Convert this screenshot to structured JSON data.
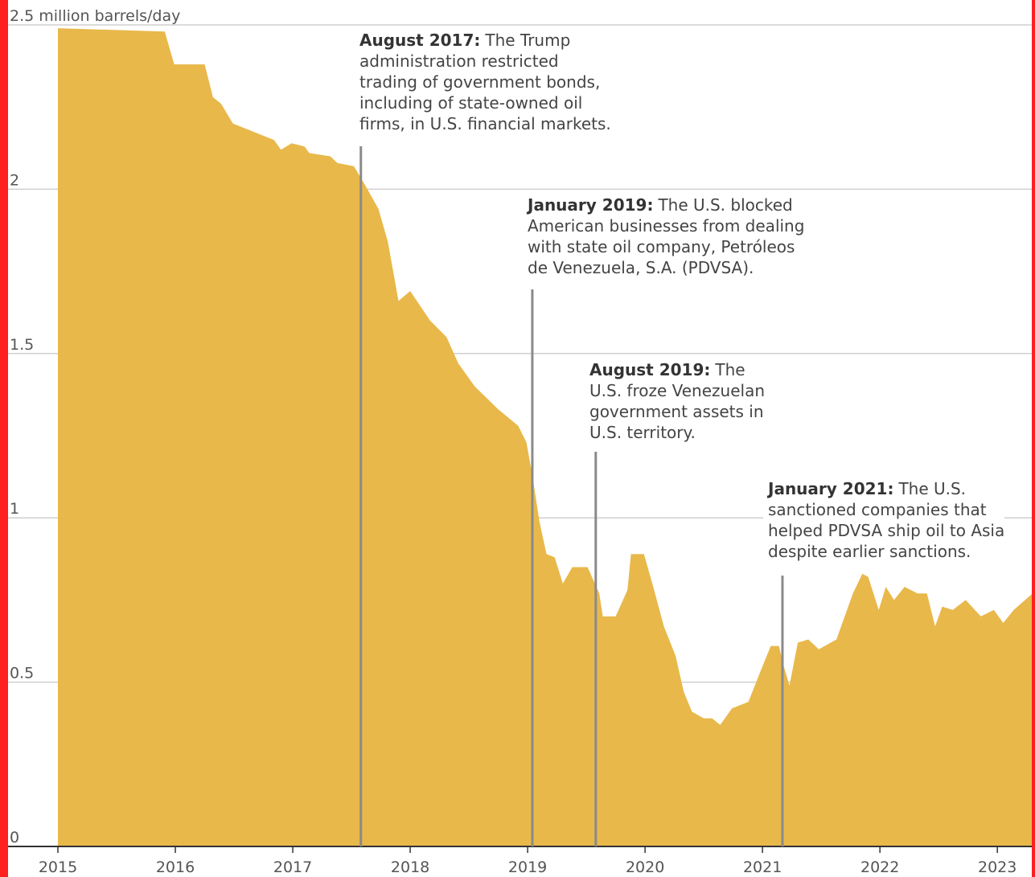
{
  "chart_data": {
    "type": "area",
    "color": "#e8b84b",
    "grid": true,
    "xlim": [
      2015,
      2023.3
    ],
    "xticks": [
      2015,
      2016,
      2017,
      2018,
      2019,
      2020,
      2021,
      2022,
      2023
    ],
    "ylim": [
      0,
      2.5
    ],
    "yticks": [
      0,
      0.5,
      1,
      1.5,
      2,
      {
        "value": 2.5,
        "label": "2.5 million barrels/day"
      }
    ],
    "x": [
      2015.0,
      2015.91,
      2015.99,
      2016.25,
      2016.32,
      2016.39,
      2016.49,
      2016.84,
      2016.9,
      2016.99,
      2017.1,
      2017.14,
      2017.32,
      2017.38,
      2017.52,
      2017.62,
      2017.73,
      2017.81,
      2017.9,
      2018.0,
      2018.17,
      2018.31,
      2018.41,
      2018.55,
      2018.75,
      2018.92,
      2018.99,
      2019.04,
      2019.1,
      2019.16,
      2019.23,
      2019.3,
      2019.38,
      2019.51,
      2019.61,
      2019.64,
      2019.75,
      2019.85,
      2019.88,
      2019.99,
      2020.07,
      2020.16,
      2020.26,
      2020.33,
      2020.4,
      2020.5,
      2020.57,
      2020.64,
      2020.74,
      2020.88,
      2020.98,
      2021.07,
      2021.14,
      2021.18,
      2021.23,
      2021.3,
      2021.39,
      2021.48,
      2021.63,
      2021.77,
      2021.85,
      2021.9,
      2021.99,
      2022.05,
      2022.12,
      2022.21,
      2022.32,
      2022.4,
      2022.47,
      2022.53,
      2022.62,
      2022.73,
      2022.86,
      2022.97,
      2023.05,
      2023.14,
      2023.3
    ],
    "values": [
      2.49,
      2.48,
      2.38,
      2.38,
      2.28,
      2.26,
      2.2,
      2.15,
      2.12,
      2.14,
      2.13,
      2.11,
      2.1,
      2.08,
      2.07,
      2.01,
      1.94,
      1.84,
      1.66,
      1.69,
      1.6,
      1.55,
      1.47,
      1.4,
      1.33,
      1.28,
      1.23,
      1.13,
      0.99,
      0.89,
      0.88,
      0.8,
      0.85,
      0.85,
      0.77,
      0.7,
      0.7,
      0.78,
      0.89,
      0.89,
      0.79,
      0.67,
      0.58,
      0.47,
      0.41,
      0.39,
      0.39,
      0.37,
      0.42,
      0.44,
      0.53,
      0.61,
      0.61,
      0.55,
      0.49,
      0.62,
      0.63,
      0.6,
      0.63,
      0.77,
      0.83,
      0.82,
      0.72,
      0.79,
      0.75,
      0.79,
      0.77,
      0.77,
      0.67,
      0.73,
      0.72,
      0.75,
      0.7,
      0.72,
      0.68,
      0.72,
      0.77
    ],
    "annotations": [
      {
        "x": 2017.58,
        "date": "August 2017:",
        "lines": [
          "The Trump",
          "administration restricted",
          "trading of government bonds,",
          "including of state-owned oil",
          "firms, in U.S. financial markets."
        ]
      },
      {
        "x": 2019.04,
        "date": "January 2019:",
        "lines": [
          "The U.S. blocked",
          "American businesses from dealing",
          "with state oil company, Petróleos",
          "de Venezuela, S.A. (PDVSA)."
        ]
      },
      {
        "x": 2019.58,
        "date": "August 2019:",
        "lines": [
          "The",
          "U.S. froze Venezuelan",
          "government assets in",
          "U.S. territory."
        ]
      },
      {
        "x": 2021.17,
        "date": "January 2021:",
        "lines": [
          "The U.S.",
          "sanctioned companies that",
          "helped PDVSA ship oil to Asia",
          "despite earlier sanctions."
        ]
      }
    ]
  }
}
